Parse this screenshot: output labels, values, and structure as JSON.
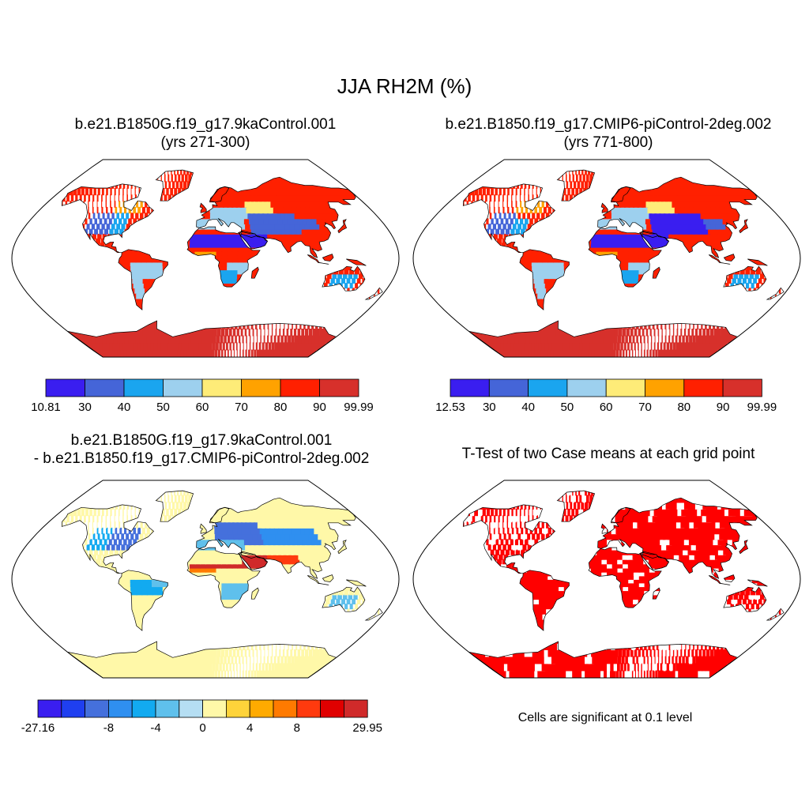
{
  "figure_title": "JJA RH2M (%)",
  "significance_note": "Cells are significant at 0.1 level",
  "chart_data": [
    {
      "type": "heatmap",
      "projection": "robinson",
      "title_line1": "b.e21.B1850G.f19_g17.9kaControl.001",
      "title_line2": "(yrs 271-300)",
      "colorbar": {
        "min_label": "10.81",
        "max_label": "99.99",
        "levels": [
          30,
          40,
          50,
          60,
          70,
          80,
          90
        ],
        "colors": [
          "#3a1ef0",
          "#4565d8",
          "#1aa5ef",
          "#9dd0ee",
          "#feec78",
          "#ffa200",
          "#ff2000",
          "#d7302b"
        ]
      }
    },
    {
      "type": "heatmap",
      "projection": "robinson",
      "title_line1": "b.e21.B1850.f19_g17.CMIP6-piControl-2deg.002",
      "title_line2": "(yrs 771-800)",
      "colorbar": {
        "min_label": "12.53",
        "max_label": "99.99",
        "levels": [
          30,
          40,
          50,
          60,
          70,
          80,
          90
        ],
        "colors": [
          "#3a1ef0",
          "#4565d8",
          "#1aa5ef",
          "#9dd0ee",
          "#feec78",
          "#ffa200",
          "#ff2000",
          "#d7302b"
        ]
      }
    },
    {
      "type": "heatmap",
      "projection": "robinson",
      "title_line1": "b.e21.B1850G.f19_g17.9kaControl.001",
      "title_line2": "- b.e21.B1850.f19_g17.CMIP6-piControl-2deg.002",
      "colorbar": {
        "min_label": "-27.16",
        "max_label": "29.95",
        "levels": [
          -12,
          -10,
          -8,
          -6,
          -4,
          -2,
          0,
          2,
          4,
          6,
          8,
          10,
          12
        ],
        "tick_labels": [
          "-8",
          "-4",
          "0",
          "4",
          "8"
        ],
        "colors": [
          "#3a1ef0",
          "#1f3ff0",
          "#4570dc",
          "#2f8ff0",
          "#12aaf0",
          "#5fc0ec",
          "#b5def3",
          "#fff8a8",
          "#fed33a",
          "#ffaa00",
          "#ff7a00",
          "#ff3a0e",
          "#e00000",
          "#d02a2a"
        ]
      }
    },
    {
      "type": "heatmap",
      "projection": "robinson",
      "title_line1": "T-Test of two Case means at each grid point",
      "fill_color": "#ff0000"
    }
  ]
}
